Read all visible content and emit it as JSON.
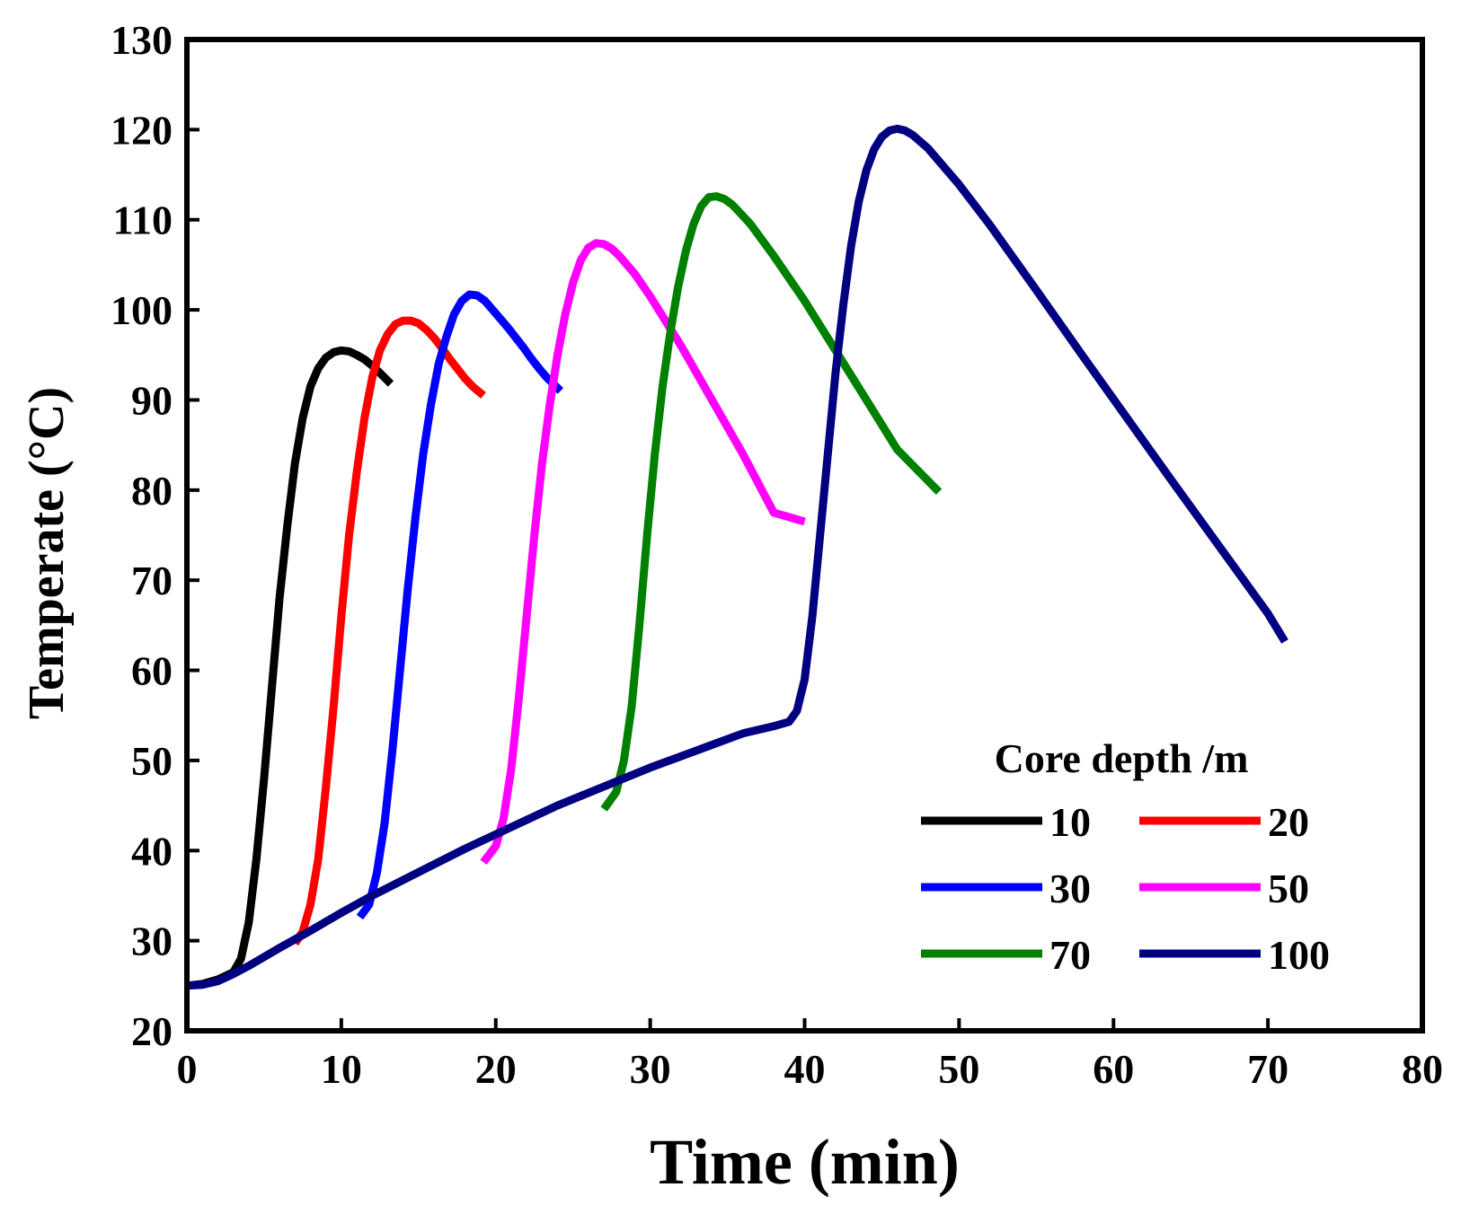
{
  "chart_data": {
    "type": "line",
    "title": "",
    "xlabel": "Time (min)",
    "ylabel": "Temperate (°C)",
    "xlim": [
      0,
      80
    ],
    "ylim": [
      20,
      130
    ],
    "xticks": [
      0,
      10,
      20,
      30,
      40,
      50,
      60,
      70,
      80
    ],
    "yticks": [
      20,
      30,
      40,
      50,
      60,
      70,
      80,
      90,
      100,
      110,
      120,
      130
    ],
    "grid": false,
    "legend": {
      "title": "Core depth /m",
      "position": "bottom-right",
      "columns": 2
    },
    "series": [
      {
        "name": "10",
        "color": "#000000",
        "x": [
          0,
          1,
          2,
          3,
          3.5,
          4,
          4.5,
          5,
          5.5,
          6,
          6.5,
          7,
          7.5,
          8,
          8.5,
          9,
          9.5,
          10,
          10.5,
          11,
          11.5,
          12,
          12.5,
          13.2
        ],
        "y": [
          25,
          25.2,
          25.7,
          26.5,
          28,
          32,
          39,
          48,
          58,
          68,
          76,
          83,
          88,
          91.5,
          93.5,
          94.7,
          95.3,
          95.5,
          95.4,
          95,
          94.5,
          93.8,
          93,
          91.8
        ]
      },
      {
        "name": "20",
        "color": "#ff0000",
        "x": [
          7,
          7.5,
          8,
          8.5,
          9,
          9.5,
          10,
          10.5,
          11,
          11.5,
          12,
          12.5,
          13,
          13.5,
          14,
          14.5,
          15,
          15.5,
          16,
          16.5,
          17,
          17.5,
          18,
          18.5,
          19.2
        ],
        "y": [
          29.7,
          31,
          34,
          39,
          47,
          56,
          66,
          75,
          82,
          88,
          92.5,
          95.5,
          97.3,
          98.4,
          98.8,
          98.8,
          98.5,
          97.8,
          96.9,
          95.8,
          94.6,
          93.5,
          92.4,
          91.5,
          90.5
        ]
      },
      {
        "name": "30",
        "color": "#0000ff",
        "x": [
          11.2,
          11.8,
          12.3,
          12.8,
          13.3,
          13.8,
          14.3,
          14.8,
          15.3,
          15.8,
          16.3,
          16.8,
          17.3,
          17.8,
          18.3,
          18.8,
          19.3,
          19.8,
          20.3,
          20.8,
          21.3,
          21.8,
          22.3,
          22.8,
          23.3,
          24.2
        ],
        "y": [
          32.6,
          34,
          37.5,
          43,
          51,
          60,
          69,
          77,
          84,
          89.5,
          94,
          97,
          99.5,
          101,
          101.7,
          101.6,
          101,
          100,
          99,
          98,
          96.9,
          95.8,
          94.6,
          93.5,
          92.5,
          91
        ]
      },
      {
        "name": "50",
        "color": "#ff00ff",
        "x": [
          19.2,
          20,
          20.5,
          21,
          21.5,
          22,
          22.5,
          23,
          23.5,
          24,
          24.5,
          25,
          25.5,
          26,
          26.5,
          27,
          27.5,
          28,
          28.5,
          29,
          30,
          32,
          34,
          36,
          38,
          40
        ],
        "y": [
          38.7,
          40.5,
          43.5,
          49,
          57,
          66,
          75,
          83,
          89.5,
          95,
          99.5,
          103,
          105.5,
          106.9,
          107.4,
          107.3,
          106.8,
          106,
          105,
          104,
          101.5,
          96,
          90,
          84,
          77.5,
          76.5
        ]
      },
      {
        "name": "70",
        "color": "#008000",
        "x": [
          27,
          27.8,
          28.3,
          28.8,
          29.3,
          29.8,
          30.3,
          30.8,
          31.3,
          31.8,
          32.3,
          32.8,
          33.3,
          33.8,
          34.3,
          34.8,
          35.3,
          35.8,
          36.5,
          38,
          40,
          42,
          44,
          46,
          48.7
        ],
        "y": [
          44.6,
          46.5,
          50,
          56,
          65,
          75,
          84,
          91.5,
          97.5,
          102.5,
          106.5,
          109.5,
          111.5,
          112.5,
          112.6,
          112.3,
          111.7,
          110.8,
          109.5,
          106,
          101,
          95.5,
          90,
          84.5,
          79.8
        ]
      },
      {
        "name": "100",
        "color": "#000080",
        "x": [
          0,
          1,
          2,
          3,
          4,
          5,
          6,
          8,
          10,
          12,
          15,
          18,
          21,
          24,
          27,
          30,
          33,
          36,
          38,
          39,
          39.5,
          40,
          40.5,
          41,
          41.5,
          42,
          42.5,
          43,
          43.5,
          44,
          44.5,
          45,
          45.5,
          46,
          46.5,
          47,
          48,
          50,
          52,
          55,
          58,
          61,
          64,
          67,
          70,
          71.1
        ],
        "y": [
          25,
          25.1,
          25.5,
          26.3,
          27.2,
          28.2,
          29.2,
          31.1,
          33.1,
          35,
          37.6,
          40.2,
          42.6,
          45,
          47.1,
          49.2,
          51.1,
          53,
          53.8,
          54.3,
          55.5,
          59,
          66,
          75,
          84,
          93,
          100.5,
          107,
          112,
          115.5,
          117.8,
          119.2,
          119.9,
          120.1,
          119.9,
          119.4,
          117.9,
          113.9,
          109.4,
          102.2,
          94.9,
          87.7,
          80.5,
          73.4,
          66.3,
          63.2
        ]
      }
    ]
  }
}
